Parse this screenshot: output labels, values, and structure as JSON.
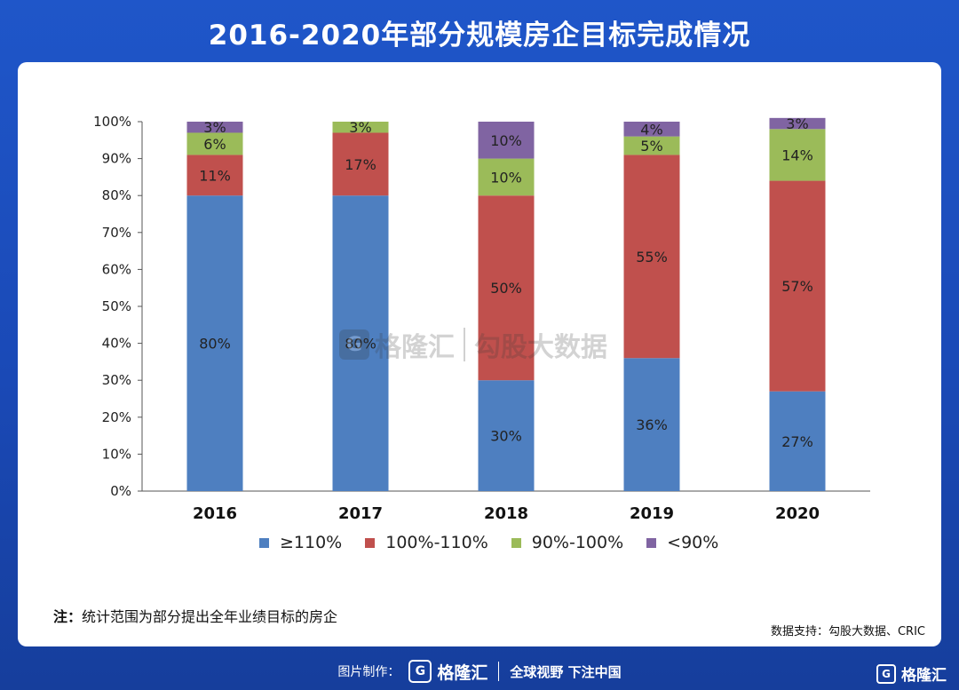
{
  "title": "2016-2020年部分规模房企目标完成情况",
  "note": {
    "prefix": "注：",
    "text": "统计范围为部分提出全年业绩目标的房企"
  },
  "source": "数据支持：勾股大数据、CRIC",
  "watermark": {
    "logo_glyph": "G",
    "brand": "格隆汇",
    "text": "勾股大数据"
  },
  "footer": {
    "made_by": "图片制作：",
    "logo_glyph": "G",
    "brand": "格隆汇",
    "slogan": "全球视野 下注中国"
  },
  "corner_brand": {
    "logo_glyph": "G",
    "text": "格隆汇"
  },
  "colors": {
    "s1": "#4e7fc0",
    "s2": "#c0504d",
    "s3": "#9bbb59",
    "s4": "#8064a2"
  },
  "chart_data": {
    "type": "bar",
    "stacked": true,
    "categories": [
      "2016",
      "2017",
      "2018",
      "2019",
      "2020"
    ],
    "series": [
      {
        "name": "≥110%",
        "values": [
          80,
          80,
          30,
          36,
          27
        ],
        "labels": [
          "80%",
          "80%",
          "30%",
          "36%",
          "27%"
        ]
      },
      {
        "name": "100%-110%",
        "values": [
          11,
          17,
          50,
          55,
          57
        ],
        "labels": [
          "11%",
          "17%",
          "50%",
          "55%",
          "57%"
        ]
      },
      {
        "name": "90%-100%",
        "values": [
          6,
          3,
          10,
          5,
          14
        ],
        "labels": [
          "6%",
          "3%",
          "10%",
          "5%",
          "14%"
        ]
      },
      {
        "name": "<90%",
        "values": [
          3,
          0,
          10,
          4,
          3
        ],
        "labels": [
          "3%",
          "",
          "10%",
          "4%",
          "3%"
        ]
      }
    ],
    "ylim": [
      0,
      100
    ],
    "yticks": [
      "0%",
      "10%",
      "20%",
      "30%",
      "40%",
      "50%",
      "60%",
      "70%",
      "80%",
      "90%",
      "100%"
    ],
    "legend_position": "bottom"
  }
}
